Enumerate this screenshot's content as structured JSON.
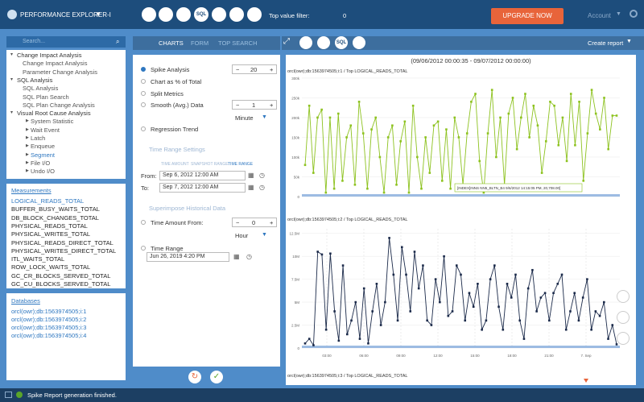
{
  "header": {
    "app_name": "PERFORMANCE EXPLORER-I",
    "toolbar_sql": "SQL",
    "top_value_filter_label": "Top value filter:",
    "top_value_filter": 0,
    "upgrade": "UPGRADE NOW",
    "account": "Account"
  },
  "sidebar": {
    "search_placeholder": "Search...",
    "tree": [
      {
        "label": "Change Impact Analysis",
        "children": [
          "Change Impact Analysis",
          "Parameter Change Analysis"
        ]
      },
      {
        "label": "SQL Analysis",
        "children": [
          "SQL Analysis",
          "SQL Plan Search",
          "SQL Plan Change Analysis"
        ]
      },
      {
        "label": "Visual Root Cause Analysis",
        "children": [
          "System Statistic",
          "Wait Event",
          "Latch",
          "Enqueue",
          "Segment",
          "File I/O",
          "Undo I/O"
        ]
      }
    ],
    "measurements_title": "Measurements",
    "measurements": [
      "LOGICAL_READS_TOTAL",
      "BUFFER_BUSY_WAITS_TOTAL",
      "DB_BLOCK_CHANGES_TOTAL",
      "PHYSICAL_READS_TOTAL",
      "PHYSICAL_WRITES_TOTAL",
      "PHYSICAL_READS_DIRECT_TOTAL",
      "PHYSICAL_WRITES_DIRECT_TOTAL",
      "ITL_WAITS_TOTAL",
      "ROW_LOCK_WAITS_TOTAL",
      "GC_CR_BLOCKS_SERVED_TOTAL",
      "GC_CU_BLOCKS_SERVED_TOTAL"
    ],
    "databases_title": "Databases",
    "databases": [
      "orcl(owr);db:1563974505;i:1",
      "orcl(owr);db:1563974505;i:2",
      "orcl(owr);db:1563974505;i:3",
      "orcl(owr);db:1563974505;i:4"
    ]
  },
  "form": {
    "tabs": [
      "CHARTS",
      "FORM",
      "TOP SEARCH"
    ],
    "spike_analysis": "Spike Analysis",
    "spike_value": 20,
    "chart_pct": "Chart as % of Total",
    "split_metrics": "Split Metrics",
    "smooth": "Smooth (Avg.) Data",
    "smooth_value": 1,
    "smooth_unit": "Minute",
    "regression": "Regression Trend",
    "time_range_settings": "Time Range Settings",
    "range_tabs": [
      "TIME AMOUNT",
      "SNAPSHOT RANGE",
      "TIME RANGE"
    ],
    "from_label": "From:",
    "from": "Sep 6, 2012 12:00 AM",
    "to_label": "To:",
    "to": "Sep 7, 2012 12:00 AM",
    "superimpose": "Superimpose Historical Data",
    "time_amount_from": "Time Amount From:",
    "time_amount_value": 0,
    "time_amount_unit": "Hour",
    "time_range": "Time Range",
    "time_range_value": "Jun 26, 2019 4:20 PM"
  },
  "charts_panel": {
    "create_report": "Create report",
    "toolbar_sql": "SQL",
    "range_title": "(09/06/2012 00:00:35 - 09/07/2012 00:00:00)",
    "charts": [
      {
        "title": "orcl(owr);db:1563974505;i:1 / Top LOGICAL_READS_TOTAL",
        "ylim": [
          0,
          310000
        ],
        "yticks": [
          0,
          {
            "value": 50000,
            "label": "50k"
          },
          {
            "value": 100000,
            "label": "100k"
          },
          {
            "value": 150000,
            "label": "150k"
          },
          {
            "value": 200000,
            "label": "200k"
          },
          {
            "value": 250000,
            "label": "250k"
          },
          {
            "value": 300000,
            "label": "300k"
          }
        ],
        "tooltip": "[INDEX]INNS NN5_BLTN_B4 9/6/2012 14:15:05 PM, 20,708.00]",
        "series": [
          {
            "color": "#8dc21f",
            "values": [
              80000,
              230000,
              60000,
              200000,
              220000,
              10000,
              200000,
              20000,
              210000,
              40000,
              150000,
              180000,
              30000,
              240000,
              160000,
              20000,
              170000,
              200000,
              100000,
              10000,
              150000,
              180000,
              30000,
              140000,
              190000,
              10000,
              230000,
              100000,
              20000,
              150000,
              60000,
              180000,
              190000,
              40000,
              170000,
              20000,
              200000,
              150000,
              30000,
              160000,
              240000,
              260000,
              90000,
              10000,
              160000,
              270000,
              100000,
              200000,
              30000,
              210000,
              250000,
              120000,
              200000,
              260000,
              150000,
              230000,
              180000,
              60000,
              140000,
              240000,
              230000,
              130000,
              200000,
              90000,
              260000,
              130000,
              240000,
              40000,
              160000,
              270000,
              210000,
              170000,
              250000,
              120000,
              205000,
              205000
            ]
          }
        ]
      },
      {
        "title": "orcl(owr);db:1563974505;i:2 / Top LOGICAL_READS_TOTAL",
        "ylim": [
          0,
          13000000
        ],
        "yticks": [
          0,
          {
            "value": 2500000,
            "label": "2.5M"
          },
          {
            "value": 5000000,
            "label": "5M"
          },
          {
            "value": 7500000,
            "label": "7.5M"
          },
          {
            "value": 10000000,
            "label": "10M"
          },
          {
            "value": 12500000,
            "label": "12.5M"
          }
        ],
        "xticks": [
          "03:00",
          "06:00",
          "09:00",
          "12:00",
          "15:00",
          "18:00",
          "21:00",
          "7. Sep"
        ],
        "series": [
          {
            "color": "#1b2a4a",
            "values": [
              500000,
              1000000,
              300000,
              10500000,
              10200000,
              2000000,
              10300000,
              4000000,
              800000,
              9000000,
              1500000,
              3000000,
              5000000,
              1000000,
              6500000,
              500000,
              4000000,
              7000000,
              2500000,
              5000000,
              12000000,
              8000000,
              3000000,
              11000000,
              8000000,
              4000000,
              10500000,
              6500000,
              9000000,
              3000000,
              2500000,
              7500000,
              5000000,
              10000000,
              3500000,
              4000000,
              9000000,
              8000000,
              3000000,
              6000000,
              4500000,
              7000000,
              2000000,
              3000000,
              7500000,
              9000000,
              4500000,
              2000000,
              7000000,
              5500000,
              8000000,
              3000000,
              1000000,
              6500000,
              8500000,
              4000000,
              5500000,
              6000000,
              3000000,
              6000000,
              7000000,
              8000000,
              2000000,
              4000000,
              6000000,
              3000000,
              5500000,
              7500000,
              2000000,
              4000000,
              3500000,
              5000000,
              1000000,
              2500000,
              400000
            ]
          }
        ]
      },
      {
        "title": "orcl(owr);db:1563974505;i:3 / Top LOGICAL_READS_TOTAL"
      }
    ]
  },
  "status": {
    "message": "Spike Report generation finished."
  }
}
